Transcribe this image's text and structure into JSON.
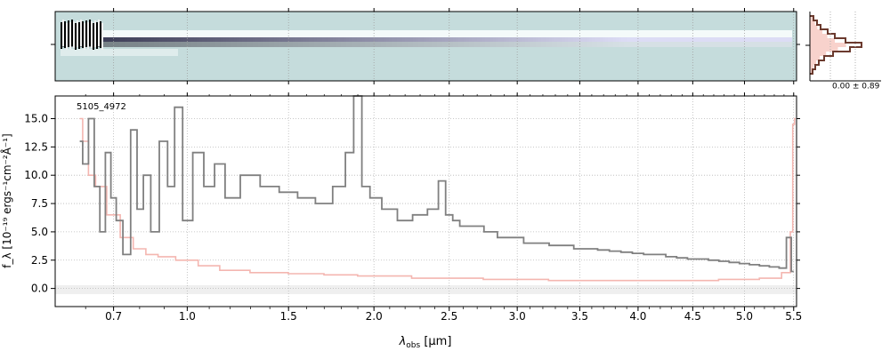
{
  "chart_data": [
    {
      "type": "heatmap",
      "panel": "2d-spectrum",
      "description_colormap": [
        "#c5dcdc",
        "#ffffff",
        "#1d1a3a"
      ],
      "grid": true
    },
    {
      "type": "line",
      "panel": "1d-spectrum",
      "annotation": "5105_4972",
      "xlabel": "λ_obs [μm]",
      "xlabel_main": "λ",
      "xlabel_sub": "obs",
      "xlabel_rest": " [μm]",
      "ylabel": "f_λ [10⁻¹⁹ ergs⁻¹cm⁻²Å⁻¹]",
      "x_scale": "sqrt",
      "xlim": [
        0.5,
        5.53
      ],
      "ylim": [
        -1.6,
        17.0
      ],
      "x_ticks": [
        0.7,
        1.0,
        1.5,
        2.0,
        2.5,
        3.0,
        3.5,
        4.0,
        4.5,
        5.0,
        5.5
      ],
      "x_tick_labels": [
        "0.7",
        "1.0",
        "1.5",
        "2.0",
        "2.5",
        "3.0",
        "3.5",
        "4.0",
        "4.5",
        "5.0",
        "5.5"
      ],
      "y_ticks": [
        0.0,
        2.5,
        5.0,
        7.5,
        10.0,
        12.5,
        15.0
      ],
      "y_tick_labels": [
        "0.0",
        "2.5",
        "5.0",
        "7.5",
        "10.0",
        "12.5",
        "15.0"
      ],
      "grid": true,
      "colors": {
        "flux": "#808080",
        "error": "#f4b6b0",
        "zero_band": "#efefef"
      },
      "series": [
        {
          "role": "flux",
          "x": [
            0.58,
            0.6,
            0.62,
            0.64,
            0.66,
            0.68,
            0.7,
            0.72,
            0.75,
            0.78,
            0.8,
            0.83,
            0.86,
            0.9,
            0.93,
            0.96,
            1.0,
            1.05,
            1.1,
            1.15,
            1.2,
            1.3,
            1.4,
            1.5,
            1.6,
            1.7,
            1.8,
            1.85,
            1.9,
            1.95,
            2.0,
            2.1,
            2.2,
            2.3,
            2.4,
            2.45,
            2.5,
            2.55,
            2.6,
            2.7,
            2.8,
            2.9,
            3.0,
            3.1,
            3.2,
            3.3,
            3.4,
            3.5,
            3.6,
            3.7,
            3.8,
            3.9,
            4.0,
            4.1,
            4.2,
            4.3,
            4.4,
            4.5,
            4.6,
            4.7,
            4.8,
            4.9,
            5.0,
            5.1,
            5.2,
            5.3,
            5.4,
            5.45,
            5.5
          ],
          "y": [
            13,
            11,
            15,
            9,
            5,
            12,
            8,
            6,
            3,
            14,
            7,
            10,
            5,
            13,
            9,
            16,
            6,
            12,
            9,
            11,
            8,
            10,
            9,
            8.5,
            8,
            7.5,
            9,
            12,
            17,
            9,
            8,
            7,
            6,
            6.5,
            7,
            9.5,
            6.5,
            6,
            5.5,
            5.5,
            5,
            4.5,
            4.5,
            4,
            4,
            3.8,
            3.8,
            3.5,
            3.5,
            3.4,
            3.3,
            3.2,
            3.1,
            3.0,
            3.0,
            2.8,
            2.7,
            2.6,
            2.6,
            2.5,
            2.4,
            2.3,
            2.2,
            2.1,
            2.0,
            1.9,
            1.8,
            4.5,
            1.5
          ]
        },
        {
          "role": "error",
          "x": [
            0.58,
            0.6,
            0.62,
            0.65,
            0.7,
            0.75,
            0.8,
            0.85,
            0.9,
            1.0,
            1.1,
            1.2,
            1.4,
            1.6,
            1.8,
            2.0,
            2.5,
            3.0,
            3.5,
            4.0,
            4.5,
            5.0,
            5.3,
            5.45,
            5.48,
            5.5,
            5.52
          ],
          "y": [
            15,
            13,
            10,
            9,
            6.5,
            4.5,
            3.5,
            3.0,
            2.8,
            2.5,
            2.0,
            1.6,
            1.4,
            1.3,
            1.2,
            1.1,
            0.9,
            0.8,
            0.7,
            0.7,
            0.7,
            0.8,
            0.9,
            1.4,
            5,
            14.5,
            15
          ]
        }
      ]
    },
    {
      "type": "bar",
      "panel": "histogram",
      "annotation": "0.00 ± 0.89",
      "grid": true
    }
  ]
}
